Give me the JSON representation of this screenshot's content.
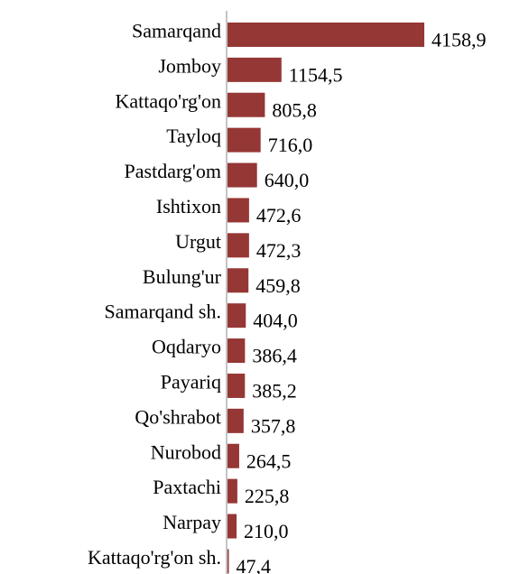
{
  "chart_data": {
    "type": "bar",
    "orientation": "horizontal",
    "categories": [
      "Samarqand",
      "Jomboy",
      "Kattaqo'rg'on",
      "Tayloq",
      "Pastdarg'om",
      "Ishtixon",
      "Urgut",
      "Bulung'ur",
      "Samarqand sh.",
      "Oqdaryo",
      "Payariq",
      "Qo'shrabot",
      "Nurobod",
      "Paxtachi",
      "Narpay",
      "Kattaqo'rg'on sh."
    ],
    "values": [
      4158.9,
      1154.5,
      805.8,
      716.0,
      640.0,
      472.6,
      472.3,
      459.8,
      404.0,
      386.4,
      385.2,
      357.8,
      264.5,
      225.8,
      210.0,
      47.4
    ],
    "value_labels": [
      "4158,9",
      "1154,5",
      "805,8",
      "716,0",
      "640,0",
      "472,6",
      "472,3",
      "459,8",
      "404,0",
      "386,4",
      "385,2",
      "357,8",
      "264,5",
      "225,8",
      "210,0",
      "47,4"
    ],
    "color": "#953735"
  }
}
